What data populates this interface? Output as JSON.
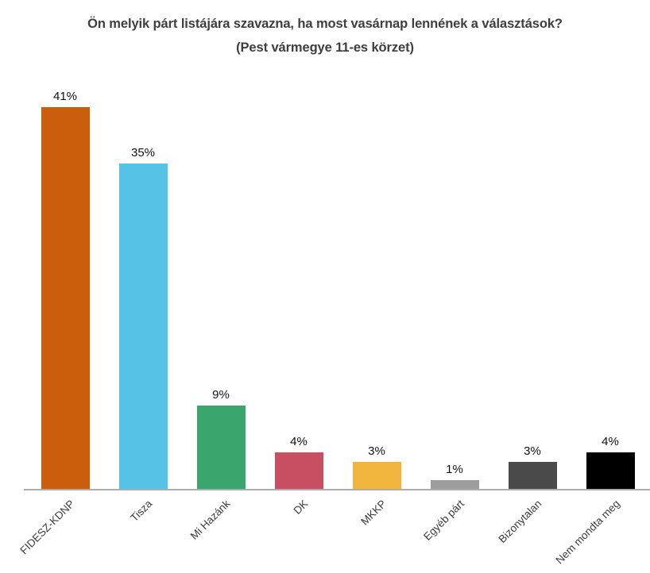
{
  "title": {
    "line1": "Ön melyik párt listájára szavazna, ha most vasárnap lennének a választások?",
    "line2": "(Pest vármegye 11-es körzet)"
  },
  "chart_data": {
    "type": "bar",
    "title": "Ön melyik párt listájára szavazna, ha most vasárnap lennének a választások?",
    "subtitle": "(Pest vármegye 11-es körzet)",
    "categories": [
      "FIDESZ-KDNP",
      "Tisza",
      "Mi Hazánk",
      "DK",
      "MKKP",
      "Egyéb párt",
      "Bizonytalan",
      "Nem mondta meg"
    ],
    "values": [
      41,
      35,
      9,
      4,
      3,
      1,
      3,
      4
    ],
    "value_labels": [
      "41%",
      "35%",
      "9%",
      "4%",
      "3%",
      "1%",
      "3%",
      "4%"
    ],
    "bar_colors": [
      "#CB5E0D",
      "#55C3E5",
      "#3BA56E",
      "#C84F62",
      "#F1B43C",
      "#9D9D9D",
      "#4A4A4A",
      "#000000"
    ],
    "xlabel": "",
    "ylabel": "",
    "ylim": [
      0,
      44
    ],
    "grid": false,
    "legend": "none",
    "tick_label_rotation_deg": 45,
    "value_label_position": "above-bar"
  },
  "colors": {
    "background": "#FFFFFF",
    "title_text": "#3E3E3E",
    "value_label_text": "#111111",
    "tick_label_text": "#3A3A3A",
    "axis_line": "#ADADAD"
  }
}
